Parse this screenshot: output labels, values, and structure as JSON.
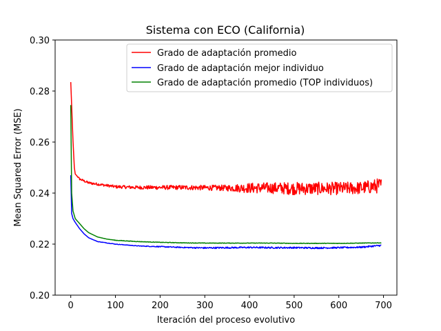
{
  "chart_data": {
    "type": "line",
    "title": "Sistema con ECO (California)",
    "xlabel": "Iteración del proceso evolutivo",
    "ylabel": "Mean Squared Error (MSE)",
    "xlim": [
      -35,
      730
    ],
    "ylim": [
      0.2,
      0.3
    ],
    "xticks": [
      0,
      100,
      200,
      300,
      400,
      500,
      600,
      700
    ],
    "yticks": [
      0.2,
      0.22,
      0.24,
      0.26,
      0.28,
      0.3
    ],
    "ytick_labels": [
      "0.20",
      "0.22",
      "0.24",
      "0.26",
      "0.28",
      "0.30"
    ],
    "grid": false,
    "legend_position": "upper-right",
    "series": [
      {
        "name": "Grado de adaptación promedio",
        "color": "#ff0000",
        "x": [
          0,
          5,
          8,
          10,
          20,
          40,
          60,
          80,
          100,
          150,
          200,
          250,
          300,
          350,
          400,
          450,
          500,
          550,
          600,
          650,
          695
        ],
        "y": [
          0.2835,
          0.2605,
          0.25,
          0.2475,
          0.2455,
          0.244,
          0.2435,
          0.243,
          0.2425,
          0.2422,
          0.2422,
          0.2422,
          0.2421,
          0.242,
          0.242,
          0.242,
          0.2418,
          0.2418,
          0.2418,
          0.242,
          0.243
        ],
        "noise_amplitude": [
          0,
          0,
          0,
          0,
          0.0004,
          0.0005,
          0.0005,
          0.0005,
          0.0006,
          0.0007,
          0.0008,
          0.0009,
          0.001,
          0.0012,
          0.002,
          0.0022,
          0.0025,
          0.0025,
          0.0025,
          0.0025,
          0.003
        ]
      },
      {
        "name": "Grado de adaptación mejor individuo",
        "color": "#0000ff",
        "x": [
          0,
          2,
          5,
          10,
          20,
          30,
          40,
          60,
          80,
          100,
          150,
          200,
          250,
          300,
          350,
          400,
          450,
          500,
          550,
          600,
          650,
          695
        ],
        "y": [
          0.247,
          0.232,
          0.23,
          0.2285,
          0.226,
          0.224,
          0.2225,
          0.221,
          0.2205,
          0.22,
          0.2193,
          0.219,
          0.2187,
          0.2185,
          0.2186,
          0.2187,
          0.2186,
          0.2186,
          0.2185,
          0.2186,
          0.2188,
          0.2195
        ],
        "noise_amplitude": [
          0,
          0,
          0,
          0,
          0,
          0,
          0,
          0.0001,
          0.0001,
          0.0001,
          0.0001,
          0.0002,
          0.0002,
          0.0003,
          0.0003,
          0.0003,
          0.0003,
          0.0003,
          0.0003,
          0.0003,
          0.0003,
          0.0003
        ]
      },
      {
        "name": "Grado de adaptación promedio (TOP individuos)",
        "color": "#008000",
        "x": [
          0,
          2,
          5,
          10,
          20,
          30,
          40,
          60,
          80,
          100,
          150,
          200,
          250,
          300,
          350,
          400,
          450,
          500,
          550,
          600,
          650,
          695
        ],
        "y": [
          0.2745,
          0.24,
          0.233,
          0.23,
          0.228,
          0.226,
          0.2245,
          0.2228,
          0.222,
          0.2215,
          0.221,
          0.2207,
          0.2205,
          0.2204,
          0.2204,
          0.2204,
          0.2204,
          0.2203,
          0.2203,
          0.2203,
          0.2204,
          0.2205
        ],
        "noise_amplitude": [
          0,
          0,
          0,
          0,
          0,
          0,
          0,
          0,
          0,
          0.0001,
          0.0001,
          0.0001,
          0.0001,
          0.0001,
          0.0001,
          0.0001,
          0.0001,
          0.0001,
          0.0001,
          0.0001,
          0.0001,
          0.0001
        ]
      }
    ]
  }
}
